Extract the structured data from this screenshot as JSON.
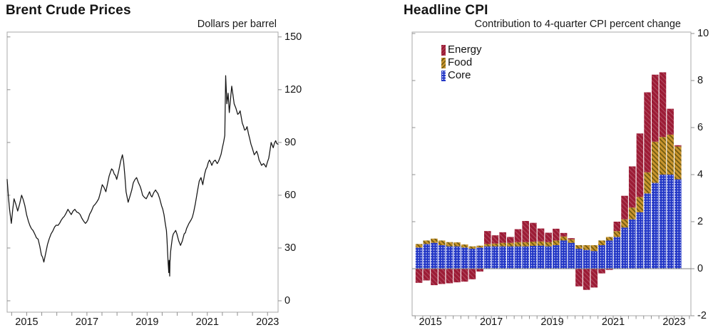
{
  "brent": {
    "title": "Brent Crude Prices",
    "unit_label": "Dollars per barrel",
    "y_tick_labels": [
      "0",
      "30",
      "60",
      "90",
      "120",
      "150"
    ],
    "x_tick_labels": [
      "2015",
      "2017",
      "2019",
      "2021",
      "2023"
    ]
  },
  "cpi": {
    "title": "Headline CPI",
    "subtitle": "Contribution to 4-quarter CPI percent change",
    "y_tick_labels": [
      "-2",
      "0",
      "2",
      "4",
      "6",
      "8",
      "10"
    ],
    "x_tick_labels": [
      "2015",
      "2017",
      "2019",
      "2021",
      "2023"
    ],
    "legend": [
      {
        "label": "Energy",
        "color": "#9c1b35"
      },
      {
        "label": "Food",
        "color": "#c9952f"
      },
      {
        "label": "Core",
        "color": "#2337c6"
      }
    ]
  },
  "chart_data": [
    {
      "type": "line",
      "title": "Brent Crude Prices",
      "ylabel": "Dollars per barrel",
      "ylim": [
        0,
        150
      ],
      "y_ticks": [
        0,
        30,
        60,
        90,
        120,
        150
      ],
      "x_ticks": [
        2015,
        2017,
        2019,
        2021,
        2023
      ],
      "xlim": [
        2014.35,
        2023.35
      ],
      "line_color": "#141414",
      "grid": false,
      "points": [
        [
          2014.35,
          69
        ],
        [
          2014.43,
          52
        ],
        [
          2014.49,
          44
        ],
        [
          2014.58,
          58
        ],
        [
          2014.7,
          51
        ],
        [
          2014.83,
          60
        ],
        [
          2014.94,
          54
        ],
        [
          2015.06,
          45
        ],
        [
          2015.21,
          40
        ],
        [
          2015.38,
          35
        ],
        [
          2015.49,
          26
        ],
        [
          2015.57,
          22
        ],
        [
          2015.69,
          32
        ],
        [
          2015.81,
          38
        ],
        [
          2015.93,
          42
        ],
        [
          2016.09,
          44
        ],
        [
          2016.25,
          48
        ],
        [
          2016.37,
          52
        ],
        [
          2016.48,
          49
        ],
        [
          2016.6,
          52
        ],
        [
          2016.72,
          50
        ],
        [
          2016.83,
          47
        ],
        [
          2016.95,
          44
        ],
        [
          2017.03,
          46
        ],
        [
          2017.15,
          51
        ],
        [
          2017.28,
          55
        ],
        [
          2017.39,
          58
        ],
        [
          2017.51,
          66
        ],
        [
          2017.63,
          62
        ],
        [
          2017.74,
          71
        ],
        [
          2017.82,
          75
        ],
        [
          2017.91,
          72
        ],
        [
          2017.99,
          69
        ],
        [
          2018.06,
          74
        ],
        [
          2018.18,
          83
        ],
        [
          2018.22,
          79
        ],
        [
          2018.3,
          62
        ],
        [
          2018.37,
          56
        ],
        [
          2018.44,
          60
        ],
        [
          2018.54,
          67
        ],
        [
          2018.65,
          70
        ],
        [
          2018.77,
          65
        ],
        [
          2018.85,
          60
        ],
        [
          2018.97,
          58
        ],
        [
          2019.08,
          62
        ],
        [
          2019.16,
          59
        ],
        [
          2019.28,
          63
        ],
        [
          2019.36,
          61
        ],
        [
          2019.48,
          54
        ],
        [
          2019.56,
          49
        ],
        [
          2019.64,
          40
        ],
        [
          2019.66,
          35
        ],
        [
          2019.68,
          28
        ],
        [
          2019.7,
          21
        ],
        [
          2019.72,
          16
        ],
        [
          2019.73,
          23
        ],
        [
          2019.75,
          14
        ],
        [
          2019.76,
          22
        ],
        [
          2019.78,
          28
        ],
        [
          2019.81,
          32
        ],
        [
          2019.84,
          36
        ],
        [
          2019.87,
          38
        ],
        [
          2019.91,
          39
        ],
        [
          2019.95,
          40
        ],
        [
          2019.99,
          38
        ],
        [
          2020.05,
          34
        ],
        [
          2020.11,
          31.5
        ],
        [
          2020.17,
          34
        ],
        [
          2020.23,
          38
        ],
        [
          2020.31,
          41
        ],
        [
          2020.39,
          44
        ],
        [
          2020.46,
          46
        ],
        [
          2020.54,
          50
        ],
        [
          2020.6,
          55
        ],
        [
          2020.67,
          62
        ],
        [
          2020.73,
          68
        ],
        [
          2020.79,
          70
        ],
        [
          2020.85,
          66
        ],
        [
          2020.91,
          72
        ],
        [
          2020.99,
          76
        ],
        [
          2021.07,
          80
        ],
        [
          2021.15,
          77
        ],
        [
          2021.26,
          80
        ],
        [
          2021.33,
          78
        ],
        [
          2021.41,
          81
        ],
        [
          2021.5,
          87
        ],
        [
          2021.58,
          94
        ],
        [
          2021.61,
          128
        ],
        [
          2021.65,
          112
        ],
        [
          2021.69,
          118
        ],
        [
          2021.73,
          107
        ],
        [
          2021.81,
          122
        ],
        [
          2021.89,
          112
        ],
        [
          2022.01,
          106
        ],
        [
          2022.09,
          108
        ],
        [
          2022.16,
          101
        ],
        [
          2022.24,
          97
        ],
        [
          2022.32,
          99
        ],
        [
          2022.41,
          92
        ],
        [
          2022.49,
          87
        ],
        [
          2022.56,
          83
        ],
        [
          2022.64,
          85
        ],
        [
          2022.72,
          80
        ],
        [
          2022.8,
          77
        ],
        [
          2022.87,
          78
        ],
        [
          2022.95,
          76
        ],
        [
          2023.04,
          81
        ],
        [
          2023.12,
          90
        ],
        [
          2023.19,
          87
        ],
        [
          2023.27,
          91
        ],
        [
          2023.35,
          89
        ]
      ]
    },
    {
      "type": "bar",
      "stacked": true,
      "title": "Headline CPI",
      "subtitle": "Contribution to 4-quarter CPI percent change",
      "ylim": [
        -2,
        10
      ],
      "y_ticks": [
        -2,
        0,
        2,
        4,
        6,
        8,
        10
      ],
      "x_ticks": [
        2015,
        2017,
        2019,
        2021,
        2023
      ],
      "xlim": [
        2014.4,
        2023.55
      ],
      "bar_width_years": 0.25,
      "first_bar_year": 2014.5,
      "legend_position": "top-left",
      "categories": [
        "2014Q3",
        "2014Q4",
        "2015Q1",
        "2015Q2",
        "2015Q3",
        "2015Q4",
        "2016Q1",
        "2016Q2",
        "2016Q3",
        "2016Q4",
        "2017Q1",
        "2017Q2",
        "2017Q3",
        "2017Q4",
        "2018Q1",
        "2018Q2",
        "2018Q3",
        "2018Q4",
        "2019Q1",
        "2019Q2",
        "2019Q3",
        "2019Q4",
        "2020Q1",
        "2020Q2",
        "2020Q3",
        "2020Q4",
        "2021Q1",
        "2021Q2",
        "2021Q3",
        "2021Q4",
        "2022Q1",
        "2022Q2",
        "2022Q3",
        "2022Q4",
        "2023Q1"
      ],
      "series": [
        {
          "name": "Core",
          "color": "#2337c6",
          "pattern": "white-dots",
          "values": [
            0.9,
            1.05,
            1.1,
            1.0,
            0.95,
            0.95,
            0.9,
            0.85,
            0.9,
            0.95,
            0.95,
            0.95,
            0.95,
            0.95,
            0.95,
            0.97,
            0.98,
            0.95,
            1.0,
            1.2,
            1.1,
            0.85,
            0.8,
            0.75,
            1.0,
            1.2,
            1.35,
            1.75,
            2.1,
            2.4,
            3.2,
            3.65,
            4.0,
            4.0,
            3.8
          ]
        },
        {
          "name": "Food",
          "color": "#c9952f",
          "pattern": "dark-diagonal-hatch",
          "values": [
            0.15,
            0.15,
            0.18,
            0.2,
            0.18,
            0.17,
            0.13,
            0.1,
            0.08,
            0.1,
            0.12,
            0.15,
            0.15,
            0.18,
            0.18,
            0.18,
            0.18,
            0.18,
            0.2,
            0.17,
            0.15,
            0.15,
            0.2,
            0.25,
            0.2,
            0.15,
            0.25,
            0.35,
            0.5,
            0.65,
            0.9,
            1.75,
            1.6,
            1.7,
            1.4
          ]
        },
        {
          "name": "Energy",
          "color": "#9c1b35",
          "pattern": "light-diagonal-hatch",
          "values": [
            -0.6,
            -0.5,
            -0.7,
            -0.65,
            -0.62,
            -0.58,
            -0.55,
            -0.45,
            -0.12,
            0.55,
            0.35,
            0.45,
            0.25,
            0.55,
            0.9,
            0.8,
            0.55,
            0.4,
            0.5,
            0.15,
            0.05,
            -0.75,
            -0.9,
            -0.8,
            -0.2,
            -0.05,
            0.4,
            1.0,
            1.75,
            2.7,
            3.4,
            2.85,
            2.75,
            1.1,
            0.05
          ]
        }
      ]
    }
  ]
}
